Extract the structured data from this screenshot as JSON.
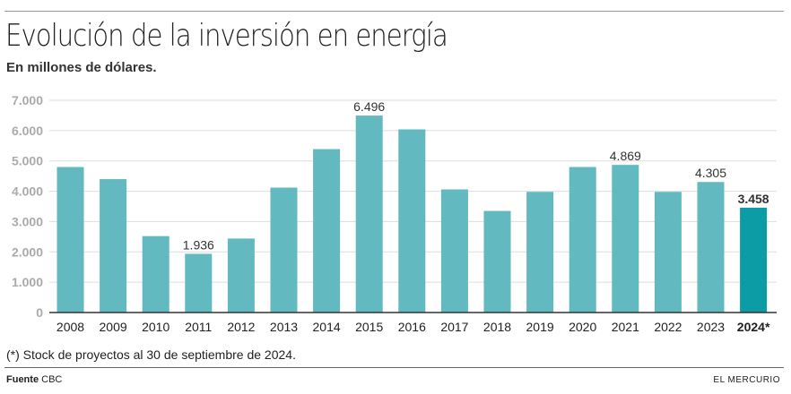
{
  "title": "Evolución de la inversión en energía",
  "subtitle": "En millones de dólares.",
  "note": "(*) Stock de proyectos al 30 de septiembre de 2024.",
  "source_label": "Fuente",
  "source_value": "CBC",
  "brand": "EL MERCURIO",
  "colors": {
    "bar": "#62BAC0",
    "highlight": "#0C9CA5",
    "grid": "#DDDDDD",
    "axis": "#333333"
  },
  "chart_data": {
    "type": "bar",
    "title": "Evolución de la inversión en energía",
    "ylabel": "En millones de dólares.",
    "xlabel": "",
    "ylim": [
      0,
      7000
    ],
    "yticks": [
      0,
      1000,
      2000,
      3000,
      4000,
      5000,
      6000,
      7000
    ],
    "ytick_labels": [
      "0",
      "1.000",
      "2.000",
      "3.000",
      "4.000",
      "5.000",
      "6.000",
      "7.000"
    ],
    "grid": true,
    "categories": [
      "2008",
      "2009",
      "2010",
      "2011",
      "2012",
      "2013",
      "2014",
      "2015",
      "2016",
      "2017",
      "2018",
      "2019",
      "2020",
      "2021",
      "2022",
      "2023",
      "2024*"
    ],
    "values": [
      4800,
      4400,
      2520,
      1936,
      2440,
      4120,
      5390,
      6496,
      6040,
      4060,
      3350,
      3980,
      4800,
      4869,
      3980,
      4305,
      3458
    ],
    "data_labels": {
      "3": "1.936",
      "7": "6.496",
      "13": "4.869",
      "15": "4.305",
      "16": "3.458"
    },
    "highlight_index": 16
  }
}
